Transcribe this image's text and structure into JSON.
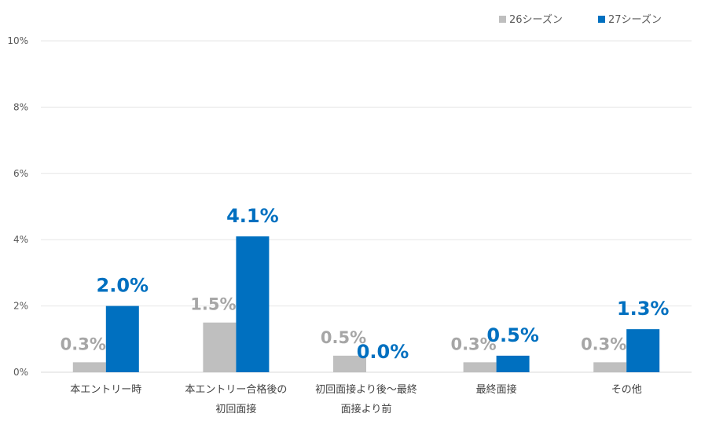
{
  "chart_data": {
    "type": "bar",
    "categories": [
      [
        "本エントリー時"
      ],
      [
        "本エントリー合格後の",
        "初回面接"
      ],
      [
        "初回面接より後～最終",
        "面接より前"
      ],
      [
        "最終面接"
      ],
      [
        "その他"
      ]
    ],
    "series": [
      {
        "name": "26シーズン",
        "values": [
          0.3,
          1.5,
          0.5,
          0.3,
          0.3
        ],
        "labels": [
          "0.3%",
          "1.5%",
          "0.5%",
          "0.3%",
          "0.3%"
        ],
        "color": "#bfbfbf",
        "label_color": "#a6a6a6"
      },
      {
        "name": "27シーズン",
        "values": [
          2.0,
          4.1,
          0.0,
          0.5,
          1.3
        ],
        "labels": [
          "2.0%",
          "4.1%",
          "0.0%",
          "0.5%",
          "1.3%"
        ],
        "color": "#0070c0",
        "label_color": "#0070c0"
      }
    ],
    "y_ticks": [
      "0%",
      "2%",
      "4%",
      "6%",
      "8%",
      "10%"
    ],
    "ylim": [
      0,
      10
    ],
    "grid": true,
    "legend": "top-right"
  }
}
